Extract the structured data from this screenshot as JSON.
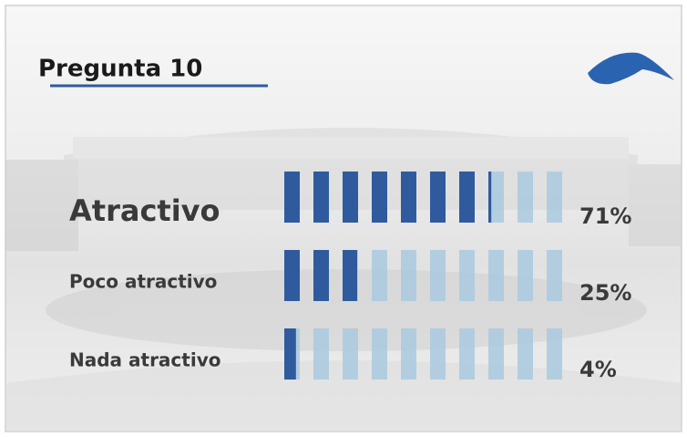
{
  "chart_data": {
    "type": "pictogram",
    "title": "Pregunta 10",
    "categories": [
      "Atractivo",
      "Poco atractivo",
      "Nada atractivo"
    ],
    "values": [
      71,
      25,
      4
    ],
    "value_labels": [
      "71%",
      "25%",
      "4%"
    ],
    "color": "#2f5b9e"
  }
}
